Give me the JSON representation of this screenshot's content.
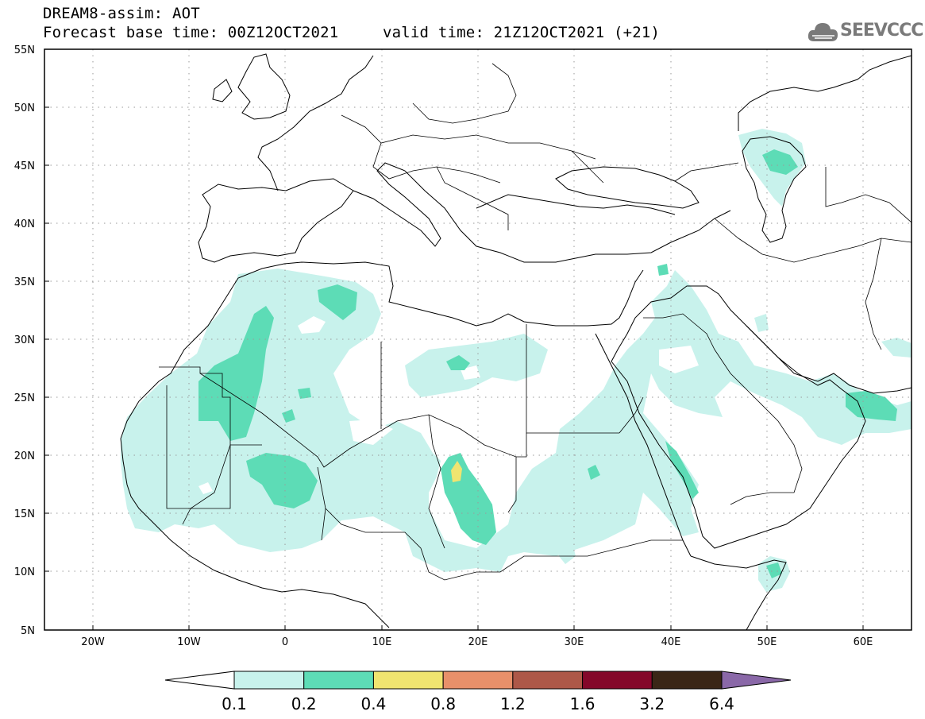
{
  "header": {
    "line1": "DREAM8-assim: AOT",
    "line2": "Forecast base time: 00Z12OCT2021",
    "line2b": "valid time: 21Z12OCT2021 (+21)"
  },
  "logo": {
    "text": "SEEVCCC",
    "icon": "cloud-icon"
  },
  "map": {
    "lat_labels": [
      "55N",
      "50N",
      "45N",
      "40N",
      "35N",
      "30N",
      "25N",
      "20N",
      "15N",
      "10N",
      "5N"
    ],
    "lon_labels": [
      "20W",
      "10W",
      "0",
      "10E",
      "20E",
      "30E",
      "40E",
      "50E",
      "60E"
    ],
    "extent": {
      "lon": [
        -25,
        65
      ],
      "lat": [
        5,
        55
      ]
    },
    "colors": {
      "c1": "#c8f2ec",
      "c2": "#5ddcb6",
      "c3": "#f0e470"
    }
  },
  "colorbar": {
    "labels": [
      "0.1",
      "0.2",
      "0.4",
      "0.8",
      "1.2",
      "1.6",
      "3.2",
      "6.4"
    ],
    "colors": [
      "#ffffff",
      "#c8f2ec",
      "#5ddcb6",
      "#f0e470",
      "#e8906a",
      "#ad5848",
      "#84082a",
      "#3a2616",
      "#8a68a8"
    ]
  }
}
